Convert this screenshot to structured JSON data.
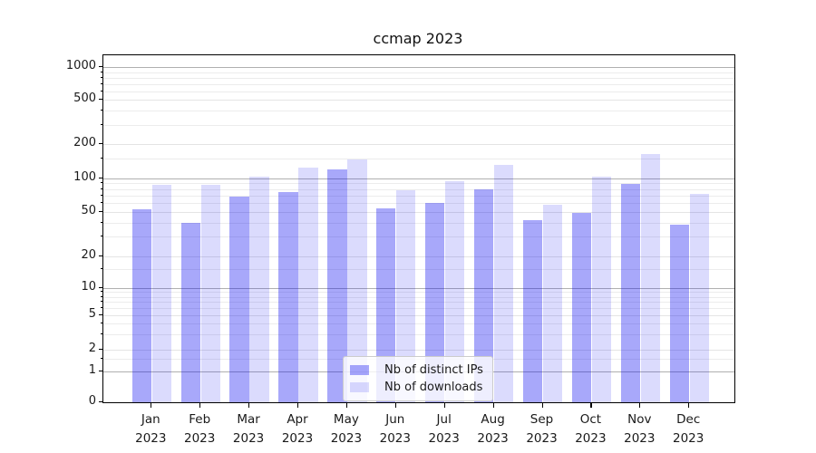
{
  "title": "ccmap 2023",
  "y_axis": {
    "tick_values": [
      0,
      1,
      2,
      5,
      10,
      20,
      50,
      100,
      200,
      500,
      1000
    ],
    "tick_labels": [
      "0",
      "1",
      "2",
      "5",
      "10",
      "20",
      "50",
      "100",
      "200",
      "500",
      "1000"
    ]
  },
  "x_axis": {
    "months": [
      "Jan",
      "Feb",
      "Mar",
      "Apr",
      "May",
      "Jun",
      "Jul",
      "Aug",
      "Sep",
      "Oct",
      "Nov",
      "Dec"
    ],
    "year": "2023"
  },
  "legend": {
    "items": [
      {
        "label": "Nb of distinct IPs",
        "color": "rgba(0,0,240,0.34)",
        "color_over_white": "#a9a9f9"
      },
      {
        "label": "Nb of downloads",
        "color": "rgba(0,0,240,0.14)",
        "color_over_white": "#dcdcfb"
      }
    ]
  },
  "colors": {
    "spine": "#000000",
    "grid_major": "#b0b0b0",
    "grid_minor": "#ececec",
    "text": "#1a1a1a"
  },
  "chart_data": {
    "type": "bar",
    "title": "ccmap 2023",
    "categories": [
      "Jan 2023",
      "Feb 2023",
      "Mar 2023",
      "Apr 2023",
      "May 2023",
      "Jun 2023",
      "Jul 2023",
      "Aug 2023",
      "Sep 2023",
      "Oct 2023",
      "Nov 2023",
      "Dec 2023"
    ],
    "series": [
      {
        "name": "Nb of distinct IPs",
        "color": "rgba(0,0,240,0.34)",
        "values": [
          53,
          40,
          68,
          75,
          120,
          54,
          60,
          80,
          42,
          49,
          89,
          38
        ]
      },
      {
        "name": "Nb of downloads",
        "color": "rgba(0,0,240,0.14)",
        "values": [
          88,
          88,
          103,
          124,
          148,
          78,
          94,
          131,
          58,
          103,
          163,
          72
        ]
      }
    ],
    "yscale": "symlog-asinh (log decades, 0 baseline)",
    "yticks": [
      0,
      1,
      2,
      5,
      10,
      20,
      50,
      100,
      200,
      500,
      1000
    ],
    "ylim": [
      0,
      1300
    ],
    "grid": true,
    "legend_position": "lower center"
  }
}
